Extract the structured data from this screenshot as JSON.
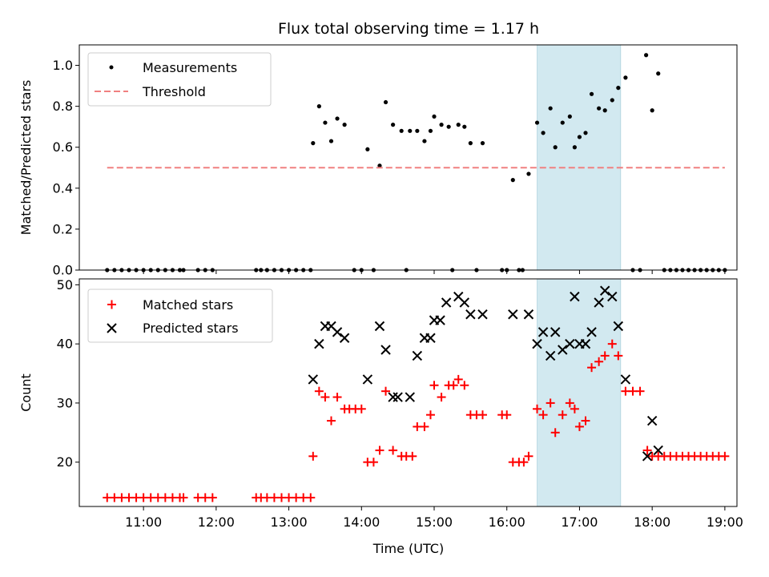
{
  "chart_data": [
    {
      "type": "scatter",
      "title": "Flux total observing time = 1.17 h",
      "xlabel": "",
      "ylabel": "Matched/Predicted stars",
      "ylim": [
        0,
        1.1
      ],
      "xlim": [
        "10:07",
        "19:10"
      ],
      "yticks": [
        "0.0",
        "0.2",
        "0.4",
        "0.6",
        "0.8",
        "1.0"
      ],
      "legend_position": "upper-left",
      "shaded_interval": {
        "start": "16:25",
        "end": "17:34",
        "color": "#d2e9f0"
      },
      "series": [
        {
          "name": "Measurements",
          "marker": "dot",
          "color": "#000000",
          "points": [
            [
              "10:30",
              0
            ],
            [
              "10:36",
              0
            ],
            [
              "10:42",
              0
            ],
            [
              "10:48",
              0
            ],
            [
              "10:54",
              0
            ],
            [
              "11:00",
              0
            ],
            [
              "11:06",
              0
            ],
            [
              "11:12",
              0
            ],
            [
              "11:18",
              0
            ],
            [
              "11:24",
              0
            ],
            [
              "11:30",
              0
            ],
            [
              "11:33",
              0
            ],
            [
              "11:45",
              0
            ],
            [
              "11:51",
              0
            ],
            [
              "11:57",
              0
            ],
            [
              "12:33",
              0
            ],
            [
              "12:37",
              0
            ],
            [
              "12:42",
              0
            ],
            [
              "12:48",
              0
            ],
            [
              "12:54",
              0
            ],
            [
              "13:00",
              0
            ],
            [
              "13:06",
              0
            ],
            [
              "13:12",
              0
            ],
            [
              "13:18",
              0
            ],
            [
              "13:20",
              0.62
            ],
            [
              "13:25",
              0.8
            ],
            [
              "13:30",
              0.72
            ],
            [
              "13:35",
              0.63
            ],
            [
              "13:40",
              0.74
            ],
            [
              "13:46",
              0.71
            ],
            [
              "13:54",
              0
            ],
            [
              "14:00",
              0
            ],
            [
              "14:05",
              0.59
            ],
            [
              "14:10",
              0
            ],
            [
              "14:15",
              0.51
            ],
            [
              "14:20",
              0.82
            ],
            [
              "14:26",
              0.71
            ],
            [
              "14:33",
              0.68
            ],
            [
              "14:37",
              0
            ],
            [
              "14:40",
              0.68
            ],
            [
              "14:46",
              0.68
            ],
            [
              "14:52",
              0.63
            ],
            [
              "14:57",
              0.68
            ],
            [
              "15:00",
              0.75
            ],
            [
              "15:06",
              0.71
            ],
            [
              "15:12",
              0.7
            ],
            [
              "15:15",
              0
            ],
            [
              "15:20",
              0.71
            ],
            [
              "15:25",
              0.7
            ],
            [
              "15:30",
              0.62
            ],
            [
              "15:35",
              0
            ],
            [
              "15:40",
              0.62
            ],
            [
              "15:56",
              0
            ],
            [
              "16:00",
              0
            ],
            [
              "16:05",
              0.44
            ],
            [
              "16:10",
              0
            ],
            [
              "16:13",
              0
            ],
            [
              "16:18",
              0.47
            ],
            [
              "16:25",
              0.72
            ],
            [
              "16:30",
              0.67
            ],
            [
              "16:36",
              0.79
            ],
            [
              "16:40",
              0.6
            ],
            [
              "16:46",
              0.72
            ],
            [
              "16:52",
              0.75
            ],
            [
              "16:56",
              0.6
            ],
            [
              "17:00",
              0.65
            ],
            [
              "17:05",
              0.67
            ],
            [
              "17:10",
              0.86
            ],
            [
              "17:16",
              0.79
            ],
            [
              "17:21",
              0.78
            ],
            [
              "17:27",
              0.83
            ],
            [
              "17:32",
              0.89
            ],
            [
              "17:38",
              0.94
            ],
            [
              "17:44",
              0
            ],
            [
              "17:50",
              0
            ],
            [
              "17:55",
              1.05
            ],
            [
              "18:00",
              0.78
            ],
            [
              "18:05",
              0.96
            ],
            [
              "18:10",
              0
            ],
            [
              "18:15",
              0
            ],
            [
              "18:20",
              0
            ],
            [
              "18:25",
              0
            ],
            [
              "18:30",
              0
            ],
            [
              "18:35",
              0
            ],
            [
              "18:40",
              0
            ],
            [
              "18:45",
              0
            ],
            [
              "18:50",
              0
            ],
            [
              "18:55",
              0
            ],
            [
              "19:00",
              0
            ]
          ]
        },
        {
          "name": "Threshold",
          "marker": "dashed-line",
          "color": "#f08080",
          "points": [
            [
              "10:30",
              0.5
            ],
            [
              "19:00",
              0.5
            ]
          ]
        }
      ]
    },
    {
      "type": "scatter",
      "title": "",
      "xlabel": "Time (UTC)",
      "ylabel": "Count",
      "ylim": [
        12.5,
        51
      ],
      "xlim": [
        "10:07",
        "19:10"
      ],
      "yticks": [
        "20",
        "30",
        "40",
        "50"
      ],
      "xticks": [
        "11:00",
        "12:00",
        "13:00",
        "14:00",
        "15:00",
        "16:00",
        "17:00",
        "18:00",
        "19:00"
      ],
      "legend_position": "upper-left",
      "shaded_interval": {
        "start": "16:25",
        "end": "17:34",
        "color": "#d2e9f0"
      },
      "series": [
        {
          "name": "Matched stars",
          "marker": "plus",
          "color": "#ff0000",
          "points": [
            [
              "10:30",
              14
            ],
            [
              "10:36",
              14
            ],
            [
              "10:42",
              14
            ],
            [
              "10:48",
              14
            ],
            [
              "10:54",
              14
            ],
            [
              "11:00",
              14
            ],
            [
              "11:06",
              14
            ],
            [
              "11:12",
              14
            ],
            [
              "11:18",
              14
            ],
            [
              "11:24",
              14
            ],
            [
              "11:30",
              14
            ],
            [
              "11:33",
              14
            ],
            [
              "11:45",
              14
            ],
            [
              "11:51",
              14
            ],
            [
              "11:57",
              14
            ],
            [
              "12:33",
              14
            ],
            [
              "12:37",
              14
            ],
            [
              "12:42",
              14
            ],
            [
              "12:48",
              14
            ],
            [
              "12:54",
              14
            ],
            [
              "13:00",
              14
            ],
            [
              "13:06",
              14
            ],
            [
              "13:12",
              14
            ],
            [
              "13:18",
              14
            ],
            [
              "13:20",
              21
            ],
            [
              "13:25",
              32
            ],
            [
              "13:30",
              31
            ],
            [
              "13:35",
              27
            ],
            [
              "13:40",
              31
            ],
            [
              "13:46",
              29
            ],
            [
              "13:50",
              29
            ],
            [
              "13:55",
              29
            ],
            [
              "14:00",
              29
            ],
            [
              "14:05",
              20
            ],
            [
              "14:10",
              20
            ],
            [
              "14:15",
              22
            ],
            [
              "14:20",
              32
            ],
            [
              "14:26",
              22
            ],
            [
              "14:33",
              21
            ],
            [
              "14:37",
              21
            ],
            [
              "14:42",
              21
            ],
            [
              "14:46",
              26
            ],
            [
              "14:52",
              26
            ],
            [
              "14:57",
              28
            ],
            [
              "15:00",
              33
            ],
            [
              "15:06",
              31
            ],
            [
              "15:12",
              33
            ],
            [
              "15:16",
              33
            ],
            [
              "15:20",
              34
            ],
            [
              "15:25",
              33
            ],
            [
              "15:30",
              28
            ],
            [
              "15:35",
              28
            ],
            [
              "15:40",
              28
            ],
            [
              "15:56",
              28
            ],
            [
              "16:00",
              28
            ],
            [
              "16:05",
              20
            ],
            [
              "16:10",
              20
            ],
            [
              "16:14",
              20
            ],
            [
              "16:18",
              21
            ],
            [
              "16:25",
              29
            ],
            [
              "16:30",
              28
            ],
            [
              "16:36",
              30
            ],
            [
              "16:40",
              25
            ],
            [
              "16:46",
              28
            ],
            [
              "16:52",
              30
            ],
            [
              "16:56",
              29
            ],
            [
              "17:00",
              26
            ],
            [
              "17:05",
              27
            ],
            [
              "17:10",
              36
            ],
            [
              "17:16",
              37
            ],
            [
              "17:21",
              38
            ],
            [
              "17:27",
              40
            ],
            [
              "17:32",
              38
            ],
            [
              "17:38",
              32
            ],
            [
              "17:44",
              32
            ],
            [
              "17:50",
              32
            ],
            [
              "17:56",
              22
            ],
            [
              "18:00",
              21
            ],
            [
              "18:05",
              21
            ],
            [
              "18:10",
              21
            ],
            [
              "18:15",
              21
            ],
            [
              "18:20",
              21
            ],
            [
              "18:25",
              21
            ],
            [
              "18:30",
              21
            ],
            [
              "18:35",
              21
            ],
            [
              "18:40",
              21
            ],
            [
              "18:45",
              21
            ],
            [
              "18:50",
              21
            ],
            [
              "18:55",
              21
            ],
            [
              "19:00",
              21
            ]
          ]
        },
        {
          "name": "Predicted stars",
          "marker": "x",
          "color": "#000000",
          "points": [
            [
              "13:20",
              34
            ],
            [
              "13:25",
              40
            ],
            [
              "13:30",
              43
            ],
            [
              "13:35",
              43
            ],
            [
              "13:40",
              42
            ],
            [
              "13:46",
              41
            ],
            [
              "14:05",
              34
            ],
            [
              "14:15",
              43
            ],
            [
              "14:20",
              39
            ],
            [
              "14:26",
              31
            ],
            [
              "14:30",
              31
            ],
            [
              "14:40",
              31
            ],
            [
              "14:46",
              38
            ],
            [
              "14:52",
              41
            ],
            [
              "14:57",
              41
            ],
            [
              "15:00",
              44
            ],
            [
              "15:05",
              44
            ],
            [
              "15:10",
              47
            ],
            [
              "15:20",
              48
            ],
            [
              "15:25",
              47
            ],
            [
              "15:30",
              45
            ],
            [
              "15:40",
              45
            ],
            [
              "16:05",
              45
            ],
            [
              "16:18",
              45
            ],
            [
              "16:25",
              40
            ],
            [
              "16:30",
              42
            ],
            [
              "16:36",
              38
            ],
            [
              "16:40",
              42
            ],
            [
              "16:46",
              39
            ],
            [
              "16:52",
              40
            ],
            [
              "16:56",
              48
            ],
            [
              "17:00",
              40
            ],
            [
              "17:05",
              40
            ],
            [
              "17:10",
              42
            ],
            [
              "17:16",
              47
            ],
            [
              "17:21",
              49
            ],
            [
              "17:27",
              48
            ],
            [
              "17:32",
              43
            ],
            [
              "17:38",
              34
            ],
            [
              "17:56",
              21
            ],
            [
              "18:00",
              27
            ],
            [
              "18:05",
              22
            ]
          ]
        }
      ]
    }
  ]
}
